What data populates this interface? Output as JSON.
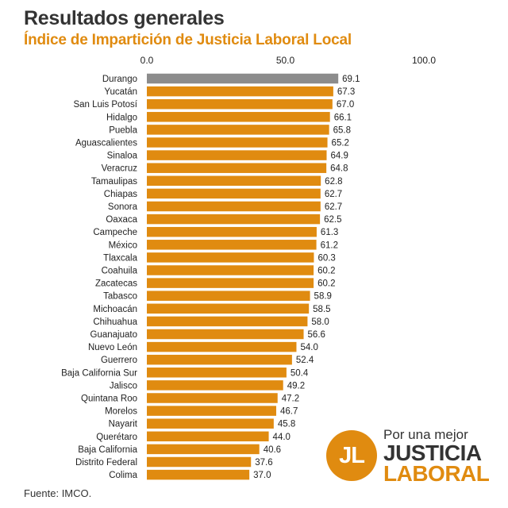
{
  "header": {
    "title": "Resultados generales",
    "subtitle": "Índice de Impartición de Justicia Laboral Local"
  },
  "footer": {
    "source": "Fuente: IMCO."
  },
  "logo": {
    "initials": "JL",
    "line1": "Por una mejor",
    "line2": "JUSTICIA",
    "line3": "LABORAL"
  },
  "colors": {
    "bar": "#e08b10",
    "highlight": "#8c8c8c",
    "accent": "#e08b10",
    "text": "#333333"
  },
  "chart_data": {
    "type": "bar",
    "orientation": "horizontal",
    "title": "Resultados generales",
    "subtitle": "Índice de Impartición de Justicia Laboral Local",
    "xlim": [
      0,
      100
    ],
    "x_ticks": [
      "0.0",
      "50.0",
      "100.0"
    ],
    "x_tick_values": [
      0,
      50,
      100
    ],
    "axis_position": "top",
    "grid": false,
    "highlighted_category": "Durango",
    "categories": [
      "Durango",
      "Yucatán",
      "San Luis Potosí",
      "Hidalgo",
      "Puebla",
      "Aguascalientes",
      "Sinaloa",
      "Veracruz",
      "Tamaulipas",
      "Chiapas",
      "Sonora",
      "Oaxaca",
      "Campeche",
      "México",
      "Tlaxcala",
      "Coahuila",
      "Zacatecas",
      "Tabasco",
      "Michoacán",
      "Chihuahua",
      "Guanajuato",
      "Nuevo León",
      "Guerrero",
      "Baja California Sur",
      "Jalisco",
      "Quintana Roo",
      "Morelos",
      "Nayarit",
      "Querétaro",
      "Baja California",
      "Distrito Federal",
      "Colima"
    ],
    "values": [
      69.1,
      67.3,
      67.0,
      66.1,
      65.8,
      65.2,
      64.9,
      64.8,
      62.8,
      62.7,
      62.7,
      62.5,
      61.3,
      61.2,
      60.3,
      60.2,
      60.2,
      58.9,
      58.5,
      58.0,
      56.6,
      54.0,
      52.4,
      50.4,
      49.2,
      47.2,
      46.7,
      45.8,
      44.0,
      40.6,
      37.6,
      37.0
    ],
    "value_labels": [
      "69.1",
      "67.3",
      "67.0",
      "66.1",
      "65.8",
      "65.2",
      "64.9",
      "64.8",
      "62.8",
      "62.7",
      "62.7",
      "62.5",
      "61.3",
      "61.2",
      "60.3",
      "60.2",
      "60.2",
      "58.9",
      "58.5",
      "58.0",
      "56.6",
      "54.0",
      "52.4",
      "50.4",
      "49.2",
      "47.2",
      "46.7",
      "45.8",
      "44.0",
      "40.6",
      "37.6",
      "37.0"
    ]
  }
}
